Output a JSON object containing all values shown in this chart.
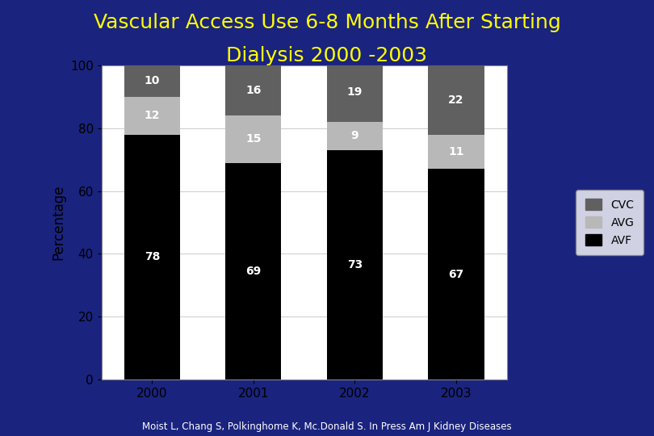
{
  "title_line1": "Vascular Access Use 6-8 Months After Starting",
  "title_line2": "Dialysis 2000 -2003",
  "title_color": "#FFFF00",
  "background_color": "#1a237e",
  "plot_bg_color": "#ffffff",
  "years": [
    "2000",
    "2001",
    "2002",
    "2003"
  ],
  "avf": [
    78,
    69,
    73,
    67
  ],
  "avg": [
    12,
    15,
    9,
    11
  ],
  "cvc": [
    10,
    16,
    19,
    22
  ],
  "avf_color": "#000000",
  "avg_color": "#b8b8b8",
  "cvc_color": "#606060",
  "ylabel": "Percentage",
  "ylim": [
    0,
    100
  ],
  "yticks": [
    0,
    20,
    40,
    60,
    80,
    100
  ],
  "bar_width": 0.55,
  "footnote": "Moist L, Chang S, Polkinghome K, Mc.Donald S. In Press Am J Kidney Diseases",
  "footnote_color": "#ffffff",
  "legend_labels": [
    "CVC",
    "AVG",
    "AVF"
  ],
  "legend_colors": [
    "#606060",
    "#b8b8b8",
    "#000000"
  ],
  "label_fontsize": 10,
  "title_fontsize": 18,
  "tick_fontsize": 11,
  "ylabel_fontsize": 12
}
